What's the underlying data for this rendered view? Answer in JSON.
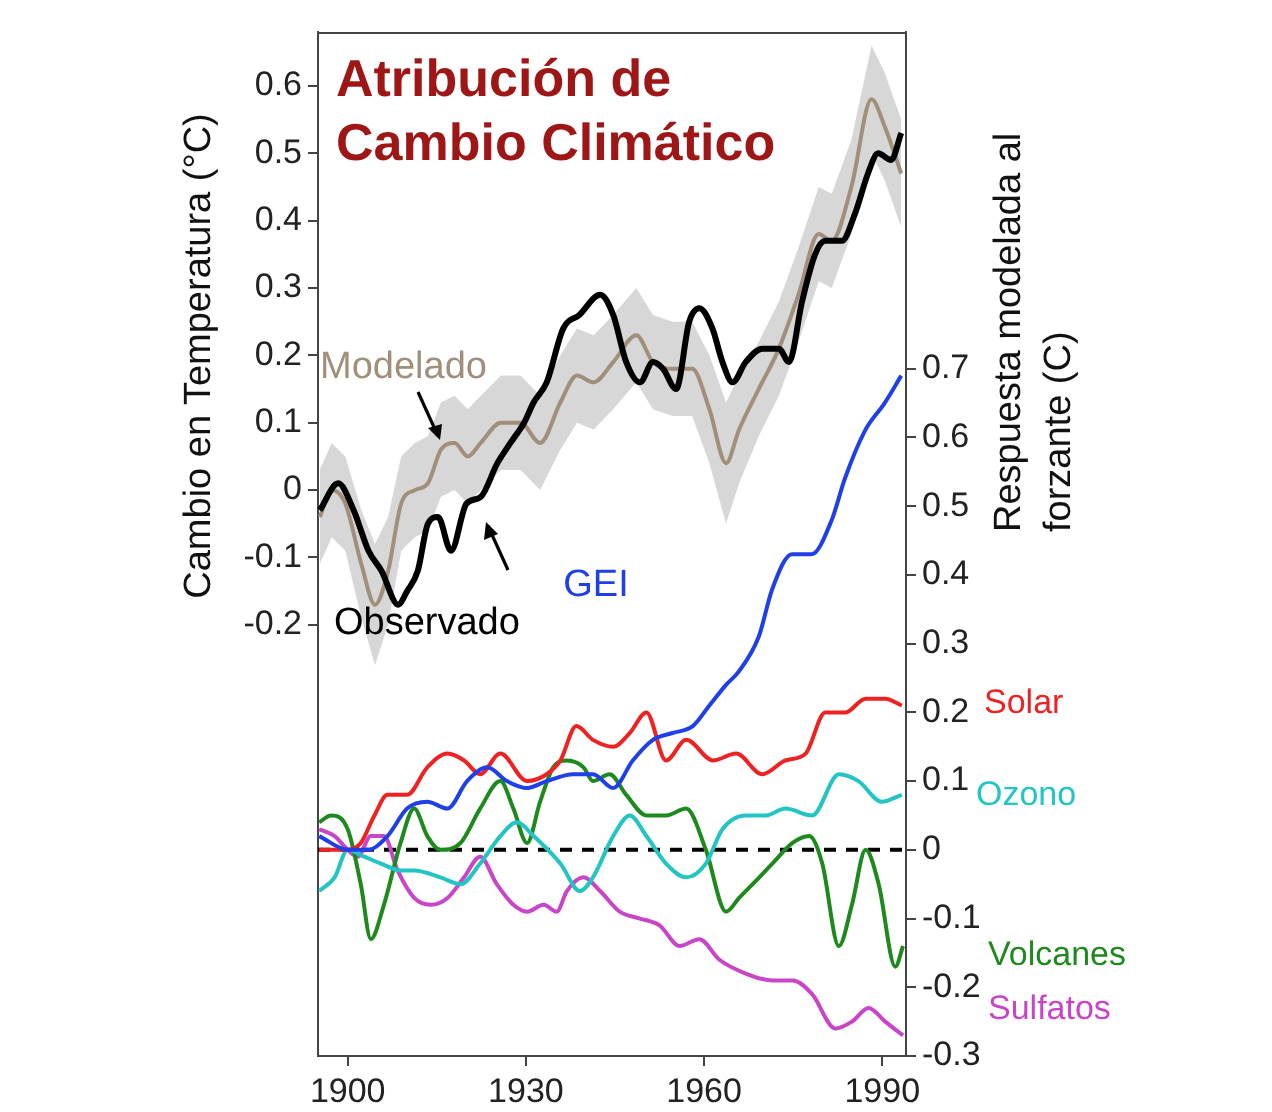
{
  "chart_data": {
    "type": "line",
    "title": "Atribución de Cambio Climático",
    "ylabel": "Cambio en Temperatura (°C)",
    "y2label": "Respuesta modelada al forzante (C)",
    "xlim": [
      1895,
      1994
    ],
    "xticks": [
      1900,
      1930,
      1960,
      1990
    ],
    "ylim": [
      -0.84,
      0.68
    ],
    "yticks": [
      -0.2,
      -0.1,
      0,
      0.1,
      0.2,
      0.3,
      0.4,
      0.5,
      0.6
    ],
    "y2lim": [
      -0.3,
      1.19
    ],
    "y2ticks": [
      -0.3,
      -0.2,
      -0.1,
      0,
      0.1,
      0.2,
      0.3,
      0.4,
      0.5,
      0.6,
      0.7
    ],
    "marker": "none",
    "line_style": "solid",
    "ref_lines": [
      {
        "axis": "y2",
        "value": 0,
        "color": "#000000",
        "line_style": "dashed"
      }
    ],
    "series": [
      {
        "name": "Observado",
        "color": "#000000",
        "x": [
          1895.3,
          1898.4,
          1901,
          1903.5,
          1905.7,
          1908.5,
          1910,
          1911.8,
          1913.5,
          1915.2,
          1917.4,
          1920,
          1922.4,
          1925.2,
          1927.4,
          1929.7,
          1931.3,
          1933.5,
          1936.3,
          1939,
          1942.5,
          1944.7,
          1946.9,
          1949.2,
          1951.4,
          1953.1,
          1955.3,
          1957.5,
          1959.2,
          1961.4,
          1963.1,
          1964.8,
          1967,
          1969.8,
          1972.6,
          1974.3,
          1976.5,
          1978.7,
          1980.4,
          1983.2,
          1985.4,
          1987.6,
          1989.3,
          1991.5,
          1993.2
        ],
        "values": [
          -0.03,
          0.01,
          -0.03,
          -0.09,
          -0.12,
          -0.17,
          -0.15,
          -0.12,
          -0.05,
          -0.04,
          -0.09,
          -0.02,
          -0.01,
          0.04,
          0.07,
          0.1,
          0.13,
          0.16,
          0.24,
          0.26,
          0.29,
          0.26,
          0.19,
          0.16,
          0.19,
          0.18,
          0.15,
          0.25,
          0.27,
          0.24,
          0.19,
          0.16,
          0.19,
          0.21,
          0.21,
          0.19,
          0.28,
          0.35,
          0.37,
          0.37,
          0.41,
          0.47,
          0.5,
          0.49,
          0.53
        ]
      },
      {
        "name": "Modelado",
        "color": "#a08f7a",
        "x": [
          1895.3,
          1897.3,
          1899.6,
          1902.3,
          1904.6,
          1906.8,
          1909,
          1911.3,
          1913.5,
          1915.7,
          1918,
          1920.2,
          1922.4,
          1925.8,
          1929.1,
          1932.4,
          1935.8,
          1938.6,
          1941.4,
          1944.7,
          1948.6,
          1951.4,
          1954.7,
          1958,
          1960.9,
          1963.7,
          1965.9,
          1969.2,
          1972.6,
          1975.9,
          1979.3,
          1981.5,
          1984.8,
          1988.2,
          1990.4,
          1993.2
        ],
        "values": [
          -0.04,
          0.0,
          -0.02,
          -0.11,
          -0.17,
          -0.12,
          -0.02,
          0.0,
          0.01,
          0.06,
          0.07,
          0.05,
          0.07,
          0.1,
          0.1,
          0.07,
          0.13,
          0.17,
          0.16,
          0.19,
          0.23,
          0.19,
          0.18,
          0.18,
          0.12,
          0.04,
          0.09,
          0.15,
          0.21,
          0.29,
          0.38,
          0.37,
          0.45,
          0.58,
          0.54,
          0.47
        ],
        "lower": [
          -0.11,
          -0.07,
          -0.09,
          -0.19,
          -0.26,
          -0.2,
          -0.09,
          -0.07,
          -0.06,
          -0.01,
          0.0,
          -0.02,
          0.0,
          0.03,
          0.03,
          0.0,
          0.06,
          0.1,
          0.09,
          0.12,
          0.16,
          0.12,
          0.11,
          0.11,
          0.04,
          -0.05,
          0.01,
          0.08,
          0.14,
          0.22,
          0.31,
          0.3,
          0.38,
          0.5,
          0.46,
          0.39
        ],
        "upper": [
          0.03,
          0.07,
          0.05,
          -0.03,
          -0.08,
          -0.04,
          0.05,
          0.07,
          0.08,
          0.13,
          0.14,
          0.12,
          0.14,
          0.17,
          0.17,
          0.14,
          0.2,
          0.24,
          0.23,
          0.26,
          0.3,
          0.26,
          0.25,
          0.25,
          0.2,
          0.13,
          0.17,
          0.22,
          0.28,
          0.36,
          0.45,
          0.44,
          0.52,
          0.66,
          0.62,
          0.55
        ]
      },
      {
        "name": "GEI",
        "color": "#1f3fe8",
        "axis": "y2",
        "x": [
          1895.2,
          1900,
          1903.4,
          1906.7,
          1910,
          1913.4,
          1916.8,
          1920.1,
          1923.5,
          1926.8,
          1930.2,
          1933.5,
          1938,
          1941.3,
          1944.7,
          1948,
          1951.4,
          1954.7,
          1958.1,
          1960.9,
          1963.7,
          1965.9,
          1969.2,
          1971.5,
          1974.8,
          1978.1,
          1981.5,
          1983.7,
          1987.1,
          1990.4,
          1993.2
        ],
        "values": [
          0.02,
          0,
          0,
          0.02,
          0.06,
          0.07,
          0.06,
          0.1,
          0.12,
          0.1,
          0.09,
          0.1,
          0.11,
          0.11,
          0.09,
          0.13,
          0.16,
          0.17,
          0.18,
          0.21,
          0.24,
          0.26,
          0.31,
          0.38,
          0.43,
          0.43,
          0.48,
          0.54,
          0.61,
          0.65,
          0.69
        ]
      },
      {
        "name": "Solar",
        "color": "#ee2222",
        "axis": "y2",
        "x": [
          1895.2,
          1900,
          1902.2,
          1904.5,
          1906.7,
          1910,
          1913.4,
          1916.8,
          1919.6,
          1922.3,
          1925.7,
          1930.2,
          1933.5,
          1935.8,
          1938.5,
          1941.3,
          1944.7,
          1947.5,
          1950.3,
          1953.6,
          1957,
          1961.5,
          1965.4,
          1969.8,
          1973.7,
          1977.1,
          1980.4,
          1983.8,
          1987.2,
          1990.5,
          1993.3
        ],
        "values": [
          0,
          0,
          0.01,
          0.05,
          0.08,
          0.08,
          0.12,
          0.14,
          0.13,
          0.11,
          0.14,
          0.1,
          0.11,
          0.13,
          0.18,
          0.16,
          0.15,
          0.17,
          0.2,
          0.13,
          0.16,
          0.13,
          0.14,
          0.11,
          0.13,
          0.14,
          0.2,
          0.2,
          0.22,
          0.22,
          0.21
        ]
      },
      {
        "name": "Ozono",
        "color": "#22c4c4",
        "axis": "y2",
        "x": [
          1895.2,
          1897.8,
          1900,
          1902.8,
          1905.6,
          1908.9,
          1911.2,
          1915.6,
          1919,
          1922.3,
          1925.7,
          1928.5,
          1931.3,
          1935.8,
          1939.1,
          1941.3,
          1944.7,
          1947.5,
          1950.3,
          1953.6,
          1957,
          1960.3,
          1963.1,
          1967,
          1970.4,
          1973.7,
          1978.2,
          1982.7,
          1986,
          1989.9,
          1993.3
        ],
        "values": [
          -0.06,
          -0.04,
          0,
          -0.01,
          -0.02,
          -0.03,
          -0.03,
          -0.04,
          -0.05,
          -0.02,
          0.02,
          0.04,
          0.02,
          -0.02,
          -0.06,
          -0.04,
          0.02,
          0.05,
          0.02,
          -0.02,
          -0.04,
          -0.02,
          0.03,
          0.05,
          0.05,
          0.06,
          0.05,
          0.11,
          0.1,
          0.07,
          0.08
        ]
      },
      {
        "name": "Volcanes",
        "color": "#1e8a1e",
        "axis": "y2",
        "x": [
          1895.2,
          1897.2,
          1900,
          1902.2,
          1903.9,
          1906.1,
          1908.9,
          1911.2,
          1913.4,
          1915.6,
          1919,
          1922.3,
          1925.7,
          1927.9,
          1930.2,
          1932.4,
          1934.6,
          1936.9,
          1939.7,
          1941.3,
          1944.1,
          1946.9,
          1950.3,
          1953.6,
          1957,
          1960.3,
          1963.7,
          1965.9,
          1969.3,
          1971.5,
          1974.9,
          1977.7,
          1979.9,
          1982.7,
          1984.9,
          1987.2,
          1989.4,
          1992.2,
          1993.5
        ],
        "values": [
          0.04,
          0.05,
          0.03,
          -0.05,
          -0.13,
          -0.08,
          0.01,
          0.06,
          0.02,
          0,
          0.01,
          0.06,
          0.1,
          0.06,
          0.01,
          0.07,
          0.12,
          0.13,
          0.12,
          0.1,
          0.11,
          0.08,
          0.05,
          0.05,
          0.06,
          0,
          -0.09,
          -0.07,
          -0.04,
          -0.02,
          0.01,
          0.02,
          -0.02,
          -0.14,
          -0.08,
          0,
          -0.05,
          -0.17,
          -0.14
        ]
      },
      {
        "name": "Sulfatos",
        "color": "#c845c8",
        "axis": "y2",
        "x": [
          1895.2,
          1897.8,
          1900,
          1901.7,
          1903.9,
          1906.1,
          1908.4,
          1911.2,
          1914,
          1916.8,
          1919.6,
          1922.3,
          1925.1,
          1927.9,
          1930.2,
          1933,
          1935.2,
          1936.9,
          1939.7,
          1942.5,
          1945.8,
          1949.2,
          1952.5,
          1955.9,
          1959.2,
          1962.6,
          1967,
          1971.5,
          1974.9,
          1978.2,
          1982.1,
          1984.9,
          1987.7,
          1990.5,
          1993.5
        ],
        "values": [
          0.03,
          0.02,
          0,
          -0.01,
          0.02,
          0.02,
          -0.03,
          -0.07,
          -0.08,
          -0.07,
          -0.04,
          -0.01,
          -0.05,
          -0.08,
          -0.09,
          -0.08,
          -0.09,
          -0.06,
          -0.04,
          -0.06,
          -0.09,
          -0.1,
          -0.11,
          -0.14,
          -0.13,
          -0.16,
          -0.18,
          -0.19,
          -0.19,
          -0.21,
          -0.26,
          -0.25,
          -0.23,
          -0.25,
          -0.27
        ]
      }
    ]
  }
}
